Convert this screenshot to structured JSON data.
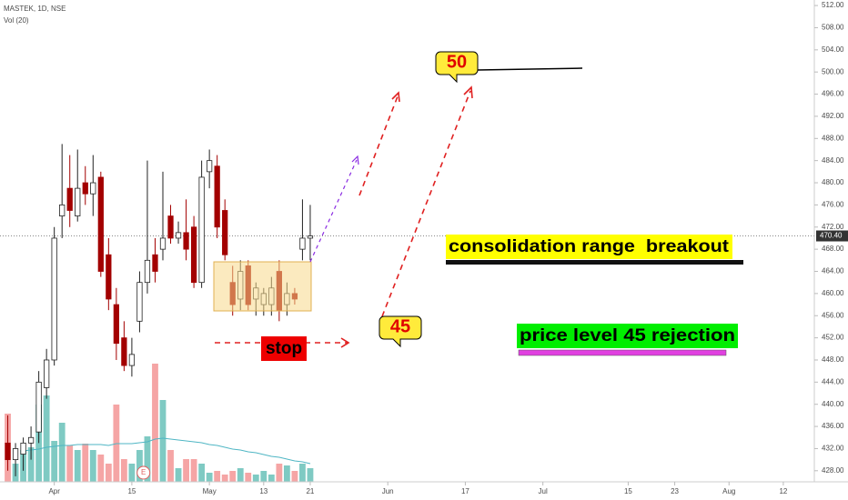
{
  "chart_data": {
    "type": "candlestick",
    "title": "MASTEK, 1D, NSE",
    "volume_label": "Vol (20)",
    "ylim": [
      426,
      513
    ],
    "yticks": [
      {
        "value": 428,
        "label": "428.00"
      },
      {
        "value": 432,
        "label": "432.00"
      },
      {
        "value": 436,
        "label": "436.00"
      },
      {
        "value": 440,
        "label": "440.00"
      },
      {
        "value": 444,
        "label": "444.00"
      },
      {
        "value": 448,
        "label": "448.00"
      },
      {
        "value": 452,
        "label": "452.00"
      },
      {
        "value": 456,
        "label": "456.00"
      },
      {
        "value": 460,
        "label": "460.00"
      },
      {
        "value": 464,
        "label": "464.00"
      },
      {
        "value": 468,
        "label": "468.00"
      },
      {
        "value": 472,
        "label": "472.00"
      },
      {
        "value": 476,
        "label": "476.00"
      },
      {
        "value": 480,
        "label": "480.00"
      },
      {
        "value": 484,
        "label": "484.00"
      },
      {
        "value": 488,
        "label": "488.00"
      },
      {
        "value": 492,
        "label": "492.00"
      },
      {
        "value": 496,
        "label": "496.00"
      },
      {
        "value": 500,
        "label": "500.00"
      },
      {
        "value": 504,
        "label": "504.00"
      },
      {
        "value": 508,
        "label": "508.00"
      },
      {
        "value": 512,
        "label": "512.00"
      }
    ],
    "xlim": [
      -1,
      104
    ],
    "xticks": [
      {
        "value": 6,
        "label": "Apr"
      },
      {
        "value": 16,
        "label": "15"
      },
      {
        "value": 26,
        "label": "May"
      },
      {
        "value": 33,
        "label": "13"
      },
      {
        "value": 39,
        "label": "21"
      },
      {
        "value": 49,
        "label": "Jun"
      },
      {
        "value": 59,
        "label": "17"
      },
      {
        "value": 69,
        "label": "Jul"
      },
      {
        "value": 80,
        "label": "15"
      },
      {
        "value": 86,
        "label": "23"
      },
      {
        "value": 93,
        "label": "Aug"
      },
      {
        "value": 100,
        "label": "12"
      }
    ],
    "up_color": "#ffffff",
    "down_color": "#a30000",
    "volume_up_color": "#7fcac3",
    "volume_down_color": "#f5a5a5",
    "volume_ma_color": "#4fb6c4",
    "candles": [
      {
        "open": 433,
        "high": 438,
        "low": 428,
        "close": 430
      },
      {
        "open": 430,
        "high": 433,
        "low": 427,
        "close": 432
      },
      {
        "open": 431,
        "high": 434,
        "low": 428,
        "close": 433
      },
      {
        "open": 433,
        "high": 436,
        "low": 430,
        "close": 434
      },
      {
        "open": 435,
        "high": 446,
        "low": 433,
        "close": 444
      },
      {
        "open": 443,
        "high": 450,
        "low": 441,
        "close": 448
      },
      {
        "open": 448,
        "high": 472,
        "low": 447,
        "close": 470
      },
      {
        "open": 474,
        "high": 487,
        "low": 470,
        "close": 476
      },
      {
        "open": 479,
        "high": 485,
        "low": 472,
        "close": 475
      },
      {
        "open": 474,
        "high": 486,
        "low": 473,
        "close": 479
      },
      {
        "open": 480,
        "high": 483,
        "low": 476,
        "close": 478
      },
      {
        "open": 478,
        "high": 485,
        "low": 474,
        "close": 480
      },
      {
        "open": 481,
        "high": 482,
        "low": 463,
        "close": 464
      },
      {
        "open": 467,
        "high": 470,
        "low": 457,
        "close": 459
      },
      {
        "open": 458,
        "high": 461,
        "low": 448,
        "close": 451
      },
      {
        "open": 452,
        "high": 455,
        "low": 446,
        "close": 447
      },
      {
        "open": 447,
        "high": 452,
        "low": 445,
        "close": 449
      },
      {
        "open": 455,
        "high": 464,
        "low": 453,
        "close": 462
      },
      {
        "open": 462,
        "high": 484,
        "low": 460,
        "close": 466
      },
      {
        "open": 467,
        "high": 470,
        "low": 462,
        "close": 464
      },
      {
        "open": 468,
        "high": 482,
        "low": 466,
        "close": 470
      },
      {
        "open": 474,
        "high": 476,
        "low": 469,
        "close": 470
      },
      {
        "open": 470,
        "high": 473,
        "low": 469,
        "close": 471
      },
      {
        "open": 471,
        "high": 477,
        "low": 466,
        "close": 468
      },
      {
        "open": 472,
        "high": 474,
        "low": 461,
        "close": 462
      },
      {
        "open": 462,
        "high": 484,
        "low": 461,
        "close": 481
      },
      {
        "open": 482,
        "high": 486,
        "low": 479,
        "close": 484
      },
      {
        "open": 483,
        "high": 485,
        "low": 470,
        "close": 472
      },
      {
        "open": 475,
        "high": 477,
        "low": 466,
        "close": 467
      },
      {
        "open": 462,
        "high": 465,
        "low": 456,
        "close": 458
      },
      {
        "open": 459,
        "high": 466,
        "low": 457,
        "close": 464
      },
      {
        "open": 465,
        "high": 466,
        "low": 457,
        "close": 458
      },
      {
        "open": 459,
        "high": 462,
        "low": 456,
        "close": 461
      },
      {
        "open": 458,
        "high": 461,
        "low": 456,
        "close": 460
      },
      {
        "open": 458,
        "high": 463,
        "low": 456,
        "close": 461
      },
      {
        "open": 464,
        "high": 466,
        "low": 455,
        "close": 457
      },
      {
        "open": 458,
        "high": 462,
        "low": 456,
        "close": 460
      },
      {
        "open": 460,
        "high": 461,
        "low": 458,
        "close": 459
      },
      {
        "open": 468,
        "high": 477,
        "low": 466,
        "close": 470
      },
      {
        "open": 470,
        "high": 476,
        "low": 466,
        "close": 470.4
      }
    ],
    "volume": [
      75,
      20,
      35,
      38,
      85,
      95,
      45,
      65,
      40,
      35,
      42,
      35,
      30,
      20,
      85,
      25,
      20,
      35,
      50,
      130,
      90,
      35,
      15,
      25,
      25,
      20,
      10,
      12,
      8,
      12,
      15,
      10,
      8,
      12,
      8,
      20,
      18,
      12,
      20,
      15
    ],
    "volume_ma": [
      null,
      null,
      34,
      35,
      36,
      38,
      39,
      40,
      40,
      41,
      41,
      41,
      41,
      40,
      42,
      42,
      42,
      43,
      44,
      47,
      48,
      47,
      46,
      45,
      44,
      43,
      41,
      40,
      38,
      36,
      35,
      33,
      32,
      30,
      28,
      27,
      25,
      23,
      22,
      20
    ],
    "last_price": {
      "value": 470.4,
      "label": "470.40"
    },
    "earnings_marker": "E",
    "annotations": [
      "50",
      "45",
      "stop",
      "consolidation range  breakout",
      "price level 45 rejection"
    ]
  }
}
